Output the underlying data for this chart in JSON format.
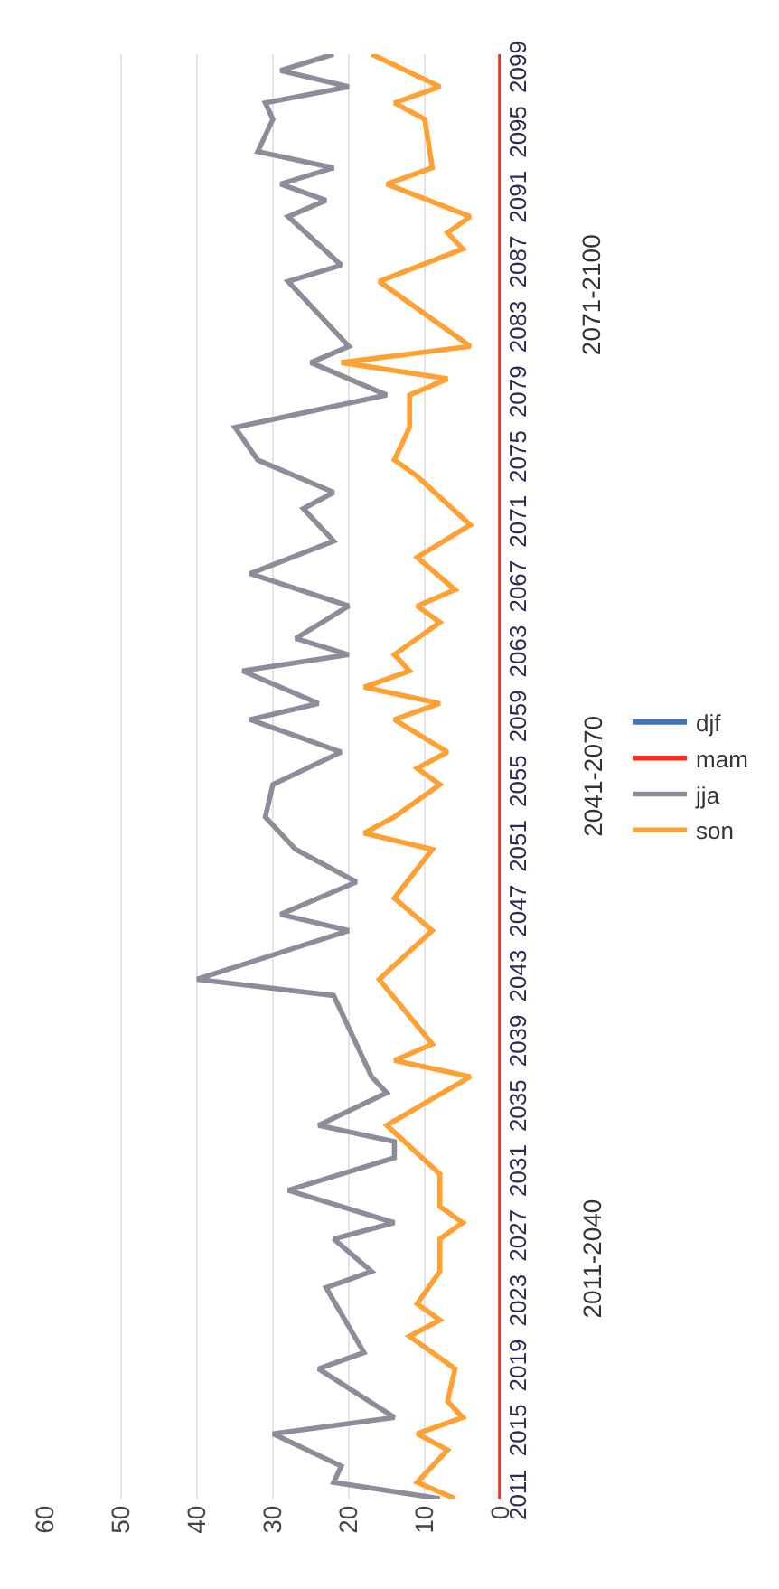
{
  "chart_data": {
    "type": "line",
    "orientation": "horizontal",
    "xlim": [
      60,
      0
    ],
    "xticks": [
      0,
      10,
      20,
      30,
      40,
      50,
      60
    ],
    "ylim": [
      2011,
      2100
    ],
    "yticks": [
      2011,
      2015,
      2019,
      2023,
      2027,
      2031,
      2035,
      2039,
      2043,
      2047,
      2051,
      2055,
      2059,
      2063,
      2067,
      2071,
      2075,
      2079,
      2083,
      2087,
      2091,
      2095,
      2099
    ],
    "grid": "x",
    "legend": "right",
    "annotations": [
      "2011-2040",
      "2041-2070",
      "2071-2100"
    ],
    "series": [
      {
        "name": "djf",
        "color": "#4472c4",
        "values": [
          null
        ]
      },
      {
        "name": "mam",
        "color": "#ff2a1a",
        "x": [
          2011,
          2100
        ],
        "values": [
          0,
          0
        ]
      },
      {
        "name": "jja",
        "color": "#8c8c9a",
        "x": [
          2011,
          2012,
          2013,
          2015,
          2016,
          2019,
          2020,
          2024,
          2025,
          2027,
          2028,
          2030,
          2032,
          2033,
          2034,
          2036,
          2037,
          2040,
          2042,
          2043,
          2046,
          2047,
          2049,
          2051,
          2053,
          2055,
          2057,
          2059,
          2060,
          2062,
          2063,
          2064,
          2066,
          2068,
          2070,
          2072,
          2073,
          2075,
          2077,
          2079,
          2081,
          2082,
          2086,
          2087,
          2090,
          2091,
          2092,
          2093,
          2094,
          2096,
          2097,
          2098,
          2099,
          2100
        ],
        "values": [
          8,
          22,
          21,
          30,
          14,
          24,
          18,
          23,
          17,
          22,
          14,
          28,
          14,
          14,
          24,
          15,
          17,
          20,
          22,
          40,
          20,
          29,
          19,
          27,
          31,
          30,
          21,
          33,
          24,
          34,
          20,
          27,
          20,
          33,
          22,
          26,
          22,
          32,
          35,
          15,
          25,
          20,
          28,
          21,
          28,
          23,
          29,
          22,
          32,
          30,
          31,
          20,
          29,
          22
        ]
      },
      {
        "name": "son",
        "color": "#ffa033",
        "x": [
          2011,
          2012,
          2014,
          2015,
          2016,
          2017,
          2019,
          2021,
          2022,
          2023,
          2025,
          2027,
          2028,
          2029,
          2031,
          2034,
          2037,
          2038,
          2039,
          2043,
          2046,
          2048,
          2051,
          2052,
          2053,
          2055,
          2056,
          2057,
          2059,
          2060,
          2061,
          2062,
          2063,
          2065,
          2066,
          2067,
          2069,
          2071,
          2074,
          2075,
          2077,
          2079,
          2080,
          2081,
          2082,
          2086,
          2088,
          2089,
          2090,
          2092,
          2093,
          2096,
          2097,
          2098,
          2100
        ],
        "values": [
          6,
          11,
          7,
          11,
          5,
          7,
          6,
          12,
          8,
          11,
          8,
          8,
          5,
          8,
          8,
          15,
          4,
          14,
          9,
          16,
          9,
          14,
          9,
          18,
          14,
          8,
          11,
          7,
          14,
          8,
          18,
          12,
          14,
          8,
          11,
          6,
          11,
          4,
          11,
          14,
          12,
          12,
          7,
          21,
          4,
          16,
          5,
          7,
          4,
          15,
          9,
          10,
          14,
          8,
          17
        ]
      }
    ]
  }
}
